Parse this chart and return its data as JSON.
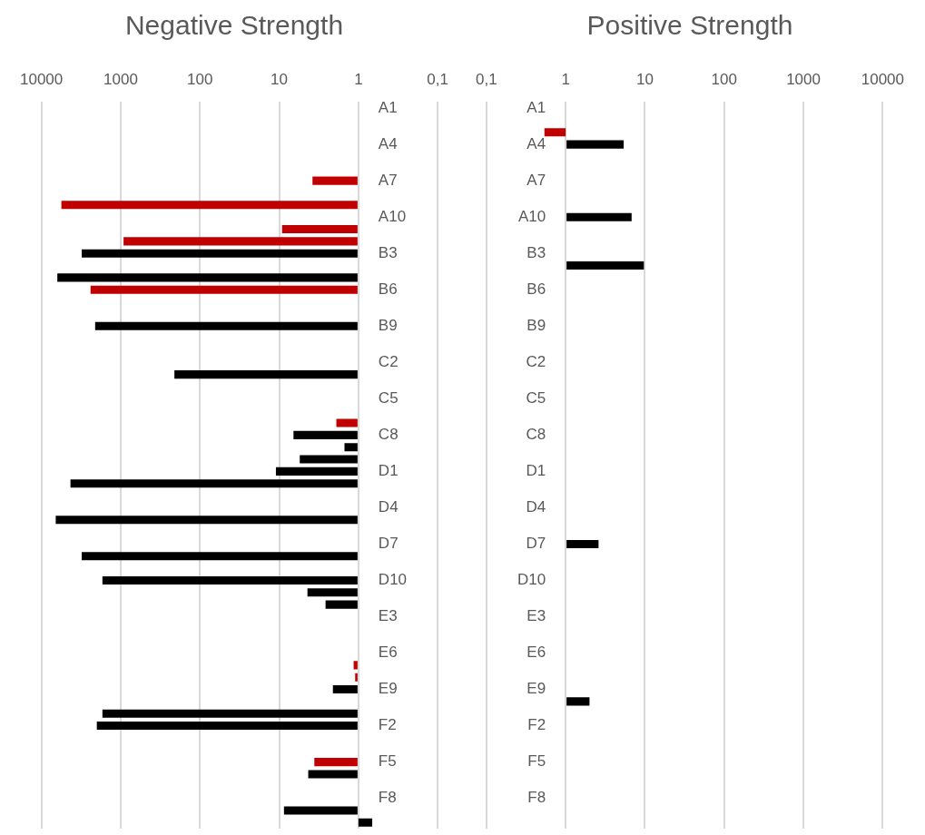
{
  "chart_data": [
    {
      "type": "bar",
      "orientation": "horizontal",
      "title": "Negative Strength",
      "log": "x",
      "grid": "x",
      "legend": false,
      "categories": [
        "A1",
        null,
        null,
        "A4",
        null,
        null,
        "A7",
        null,
        null,
        "A10",
        null,
        null,
        "B3",
        null,
        null,
        "B6",
        null,
        null,
        "B9",
        null,
        null,
        "C2",
        null,
        null,
        "C5",
        null,
        null,
        "C8",
        null,
        null,
        "D1",
        null,
        null,
        "D4",
        null,
        null,
        "D7",
        null,
        null,
        "D10",
        null,
        null,
        "E3",
        null,
        null,
        "E6",
        null,
        null,
        "E9",
        null,
        null,
        "F2",
        null,
        null,
        "F5",
        null,
        null,
        "F8",
        null,
        null
      ],
      "values": [
        null,
        null,
        null,
        null,
        null,
        null,
        2.8,
        null,
        5599,
        null,
        8.2,
        919,
        3099,
        null,
        6299,
        2399,
        null,
        null,
        2099,
        null,
        null,
        null,
        209,
        null,
        null,
        null,
        0.9,
        5.6,
        0.5,
        4.5,
        10,
        4299,
        null,
        null,
        6599,
        null,
        null,
        3099,
        null,
        1699,
        3.4,
        1.6,
        null,
        null,
        null,
        null,
        0.15,
        0.1,
        1.1,
        null,
        1699,
        1999,
        null,
        null,
        2.6,
        3.3,
        null,
        null,
        7.7,
        -0.33
      ],
      "base": [
        null,
        null,
        null,
        null,
        null,
        null,
        1,
        null,
        1,
        null,
        1,
        1,
        1,
        null,
        1,
        1,
        null,
        null,
        1,
        null,
        null,
        null,
        1,
        null,
        null,
        null,
        1,
        1,
        1,
        1,
        1,
        1,
        null,
        null,
        1,
        null,
        null,
        1,
        null,
        1,
        1,
        1,
        null,
        null,
        null,
        null,
        1,
        1,
        1,
        null,
        1,
        1,
        null,
        null,
        1,
        1,
        null,
        null,
        1,
        1
      ],
      "colors": [
        null,
        null,
        null,
        null,
        null,
        null,
        "#c00000",
        null,
        "#c00000",
        null,
        "#c00000",
        "#c00000",
        "#000000",
        null,
        "#000000",
        "#c00000",
        null,
        null,
        "#000000",
        null,
        null,
        null,
        "#000000",
        null,
        null,
        null,
        "#c00000",
        "#000000",
        "#000000",
        "#000000",
        "#000000",
        "#000000",
        null,
        null,
        "#000000",
        null,
        null,
        "#000000",
        null,
        "#000000",
        "#000000",
        "#000000",
        null,
        null,
        null,
        null,
        "#c00000",
        "#c00000",
        "#000000",
        null,
        "#000000",
        "#000000",
        null,
        null,
        "#c00000",
        "#000000",
        null,
        null,
        "#000000",
        "#000000"
      ],
      "xlim": [
        10000,
        0.1
      ],
      "xticks": [
        10000,
        1000,
        100,
        10,
        1,
        {
          "value": 0.1,
          "label": "0,1"
        }
      ]
    },
    {
      "type": "bar",
      "orientation": "horizontal",
      "title": "Positive Strength",
      "log": "x",
      "grid": "x",
      "legend": false,
      "categories": [
        "A1",
        null,
        null,
        "A4",
        null,
        null,
        "A7",
        null,
        null,
        "A10",
        null,
        null,
        "B3",
        null,
        null,
        "B6",
        null,
        null,
        "B9",
        null,
        null,
        "C2",
        null,
        null,
        "C5",
        null,
        null,
        "C8",
        null,
        null,
        "D1",
        null,
        null,
        "D4",
        null,
        null,
        "D7",
        null,
        null,
        "D10",
        null,
        null,
        "E3",
        null,
        null,
        "E6",
        null,
        null,
        "E9",
        null,
        null,
        "F2",
        null,
        null,
        "F5",
        null,
        null,
        "F8",
        null,
        null
      ],
      "values": [
        null,
        null,
        -0.46,
        4.4,
        null,
        null,
        null,
        null,
        null,
        5.8,
        null,
        null,
        null,
        8.7,
        null,
        null,
        null,
        null,
        null,
        null,
        null,
        null,
        null,
        null,
        null,
        null,
        null,
        null,
        null,
        null,
        null,
        null,
        null,
        null,
        null,
        null,
        1.6,
        null,
        null,
        null,
        null,
        null,
        null,
        null,
        null,
        null,
        null,
        null,
        null,
        1.0,
        null,
        null,
        null,
        null,
        null,
        null,
        null,
        null,
        null,
        null
      ],
      "base": [
        null,
        null,
        1,
        1,
        null,
        null,
        null,
        null,
        null,
        1,
        null,
        null,
        null,
        1,
        null,
        null,
        null,
        null,
        null,
        null,
        null,
        null,
        null,
        null,
        null,
        null,
        null,
        null,
        null,
        null,
        null,
        null,
        null,
        null,
        null,
        null,
        1,
        null,
        null,
        null,
        null,
        null,
        null,
        null,
        null,
        null,
        null,
        null,
        null,
        1,
        null,
        null,
        null,
        null,
        null,
        null,
        null,
        null,
        null,
        null
      ],
      "colors": [
        null,
        null,
        "#c00000",
        "#000000",
        null,
        null,
        null,
        null,
        null,
        "#000000",
        null,
        null,
        null,
        "#000000",
        null,
        null,
        null,
        null,
        null,
        null,
        null,
        null,
        null,
        null,
        null,
        null,
        null,
        null,
        null,
        null,
        null,
        null,
        null,
        null,
        null,
        null,
        "#000000",
        null,
        null,
        null,
        null,
        null,
        null,
        null,
        null,
        null,
        null,
        null,
        null,
        "#000000",
        null,
        null,
        null,
        null,
        null,
        null,
        null,
        null,
        null,
        null
      ],
      "xlim": [
        0.1,
        10000
      ],
      "xticks": [
        {
          "value": 0.1,
          "label": "0,1"
        },
        1,
        10,
        100,
        1000,
        10000
      ]
    }
  ]
}
